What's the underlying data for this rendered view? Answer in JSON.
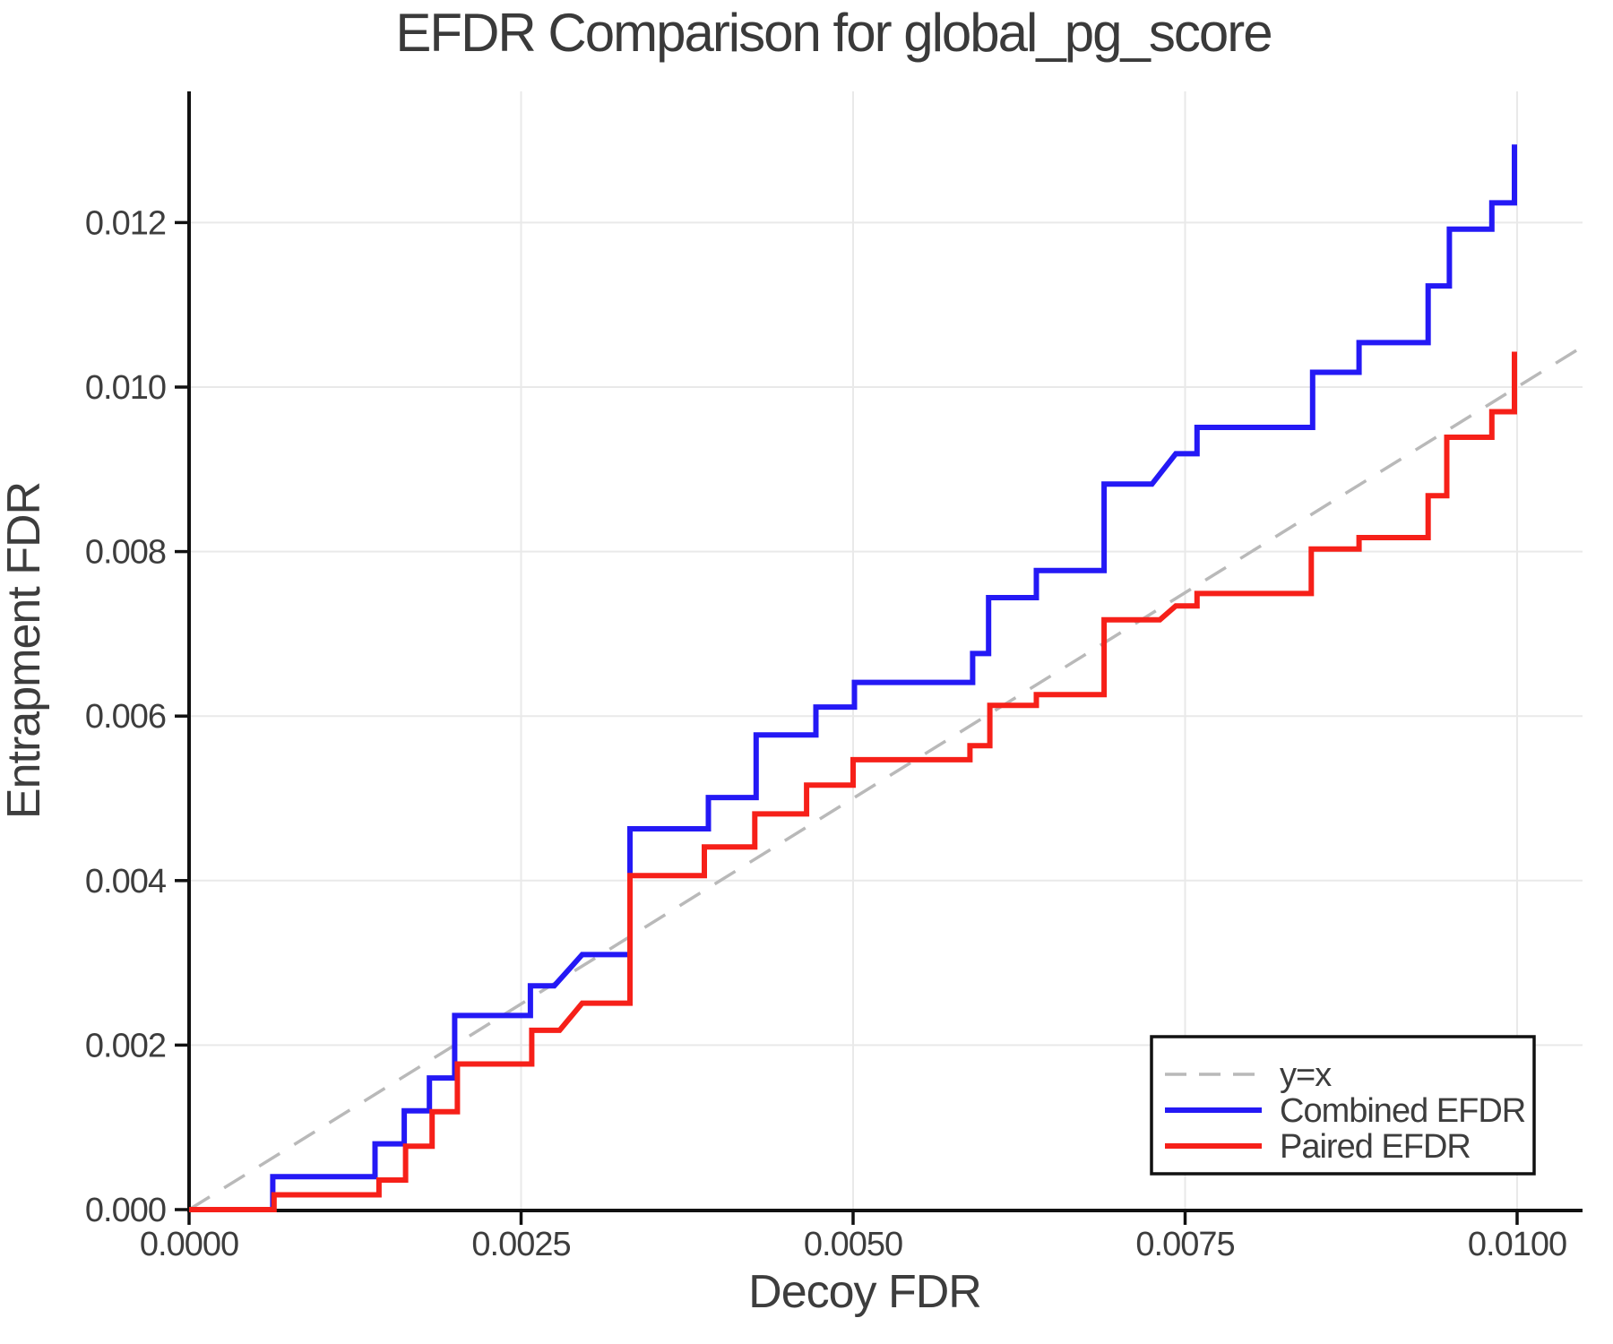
{
  "title": "EFDR Comparison for global_pg_score",
  "colors": {
    "combined": "#2419f5",
    "paired": "#f62019",
    "identity": "#b9b9b9",
    "grid": "#e9e9e9",
    "axis": "#111111",
    "text": "#3d3d3d",
    "legend_border": "#111111",
    "background": "#ffffff"
  },
  "chart_data": {
    "type": "line",
    "title": "EFDR Comparison for global_pg_score",
    "xlabel": "Decoy FDR",
    "ylabel": "Entrapment FDR",
    "xlim": [
      0,
      0.010492
    ],
    "ylim": [
      0,
      0.013595
    ],
    "grid": true,
    "legend_position": "lower right",
    "x_ticks": [
      {
        "v": 0.0,
        "label": "0.0000"
      },
      {
        "v": 0.0025,
        "label": "0.0025"
      },
      {
        "v": 0.005,
        "label": "0.0050"
      },
      {
        "v": 0.0075,
        "label": "0.0075"
      },
      {
        "v": 0.01,
        "label": "0.0100"
      }
    ],
    "y_ticks": [
      {
        "v": 0.0,
        "label": "0.000"
      },
      {
        "v": 0.002,
        "label": "0.002"
      },
      {
        "v": 0.004,
        "label": "0.004"
      },
      {
        "v": 0.006,
        "label": "0.006"
      },
      {
        "v": 0.008,
        "label": "0.008"
      },
      {
        "v": 0.01,
        "label": "0.010"
      },
      {
        "v": 0.012,
        "label": "0.012"
      }
    ],
    "series": [
      {
        "name": "y=x",
        "style": "dashed",
        "color_key": "identity",
        "points": [
          [
            0,
            0
          ],
          [
            0.010492,
            0.010492
          ]
        ]
      },
      {
        "name": "Combined EFDR",
        "style": "solid",
        "color_key": "combined",
        "points": [
          [
            0,
            0
          ],
          [
            0.00063,
            0
          ],
          [
            0.00063,
            0.0004
          ],
          [
            0.0014,
            0.0004
          ],
          [
            0.0014,
            0.0008
          ],
          [
            0.00162,
            0.0008
          ],
          [
            0.00162,
            0.0012
          ],
          [
            0.00181,
            0.0012
          ],
          [
            0.00181,
            0.0016
          ],
          [
            0.002,
            0.0016
          ],
          [
            0.002,
            0.00236
          ],
          [
            0.00257,
            0.00236
          ],
          [
            0.00257,
            0.00272
          ],
          [
            0.00275,
            0.00272
          ],
          [
            0.00296,
            0.0031
          ],
          [
            0.00332,
            0.0031
          ],
          [
            0.00332,
            0.00463
          ],
          [
            0.00391,
            0.00463
          ],
          [
            0.00391,
            0.00501
          ],
          [
            0.00427,
            0.00501
          ],
          [
            0.00427,
            0.00577
          ],
          [
            0.00472,
            0.00577
          ],
          [
            0.00472,
            0.00611
          ],
          [
            0.00501,
            0.00611
          ],
          [
            0.00501,
            0.00641
          ],
          [
            0.0059,
            0.00641
          ],
          [
            0.0059,
            0.00676
          ],
          [
            0.00602,
            0.00676
          ],
          [
            0.00602,
            0.00744
          ],
          [
            0.00638,
            0.00744
          ],
          [
            0.00638,
            0.00777
          ],
          [
            0.00689,
            0.00777
          ],
          [
            0.00689,
            0.00882
          ],
          [
            0.00725,
            0.00882
          ],
          [
            0.00743,
            0.00919
          ],
          [
            0.00759,
            0.00919
          ],
          [
            0.00759,
            0.00951
          ],
          [
            0.00846,
            0.00951
          ],
          [
            0.00846,
            0.01018
          ],
          [
            0.00881,
            0.01018
          ],
          [
            0.00881,
            0.01054
          ],
          [
            0.00933,
            0.01054
          ],
          [
            0.00933,
            0.01123
          ],
          [
            0.00949,
            0.01123
          ],
          [
            0.00949,
            0.01192
          ],
          [
            0.00981,
            0.01192
          ],
          [
            0.00981,
            0.01224
          ],
          [
            0.00998,
            0.01224
          ],
          [
            0.00998,
            0.01295
          ]
        ]
      },
      {
        "name": "Paired EFDR",
        "style": "solid",
        "color_key": "paired",
        "points": [
          [
            0,
            0
          ],
          [
            0.00064,
            0
          ],
          [
            0.00064,
            0.00018
          ],
          [
            0.00143,
            0.00018
          ],
          [
            0.00143,
            0.00036
          ],
          [
            0.00163,
            0.00036
          ],
          [
            0.00163,
            0.00077
          ],
          [
            0.00183,
            0.00077
          ],
          [
            0.00183,
            0.00119
          ],
          [
            0.00202,
            0.00119
          ],
          [
            0.00202,
            0.00177
          ],
          [
            0.00258,
            0.00177
          ],
          [
            0.00258,
            0.00218
          ],
          [
            0.00279,
            0.00218
          ],
          [
            0.00296,
            0.00251
          ],
          [
            0.00332,
            0.00251
          ],
          [
            0.00332,
            0.00406
          ],
          [
            0.00388,
            0.00406
          ],
          [
            0.00388,
            0.00441
          ],
          [
            0.00426,
            0.00441
          ],
          [
            0.00426,
            0.00481
          ],
          [
            0.00465,
            0.00481
          ],
          [
            0.00465,
            0.00516
          ],
          [
            0.005,
            0.00516
          ],
          [
            0.005,
            0.00547
          ],
          [
            0.00588,
            0.00547
          ],
          [
            0.00588,
            0.00564
          ],
          [
            0.00603,
            0.00564
          ],
          [
            0.00603,
            0.00613
          ],
          [
            0.00638,
            0.00613
          ],
          [
            0.00638,
            0.00626
          ],
          [
            0.00689,
            0.00626
          ],
          [
            0.00689,
            0.00717
          ],
          [
            0.00731,
            0.00717
          ],
          [
            0.00743,
            0.00734
          ],
          [
            0.00759,
            0.00734
          ],
          [
            0.00759,
            0.00749
          ],
          [
            0.00845,
            0.00749
          ],
          [
            0.00845,
            0.00803
          ],
          [
            0.00881,
            0.00803
          ],
          [
            0.00881,
            0.00817
          ],
          [
            0.00933,
            0.00817
          ],
          [
            0.00933,
            0.00868
          ],
          [
            0.00947,
            0.00868
          ],
          [
            0.00947,
            0.00939
          ],
          [
            0.00981,
            0.00939
          ],
          [
            0.00981,
            0.0097
          ],
          [
            0.00998,
            0.0097
          ],
          [
            0.00998,
            0.01043
          ]
        ]
      }
    ]
  },
  "legend": {
    "items": [
      "y=x",
      "Combined EFDR",
      "Paired EFDR"
    ]
  }
}
